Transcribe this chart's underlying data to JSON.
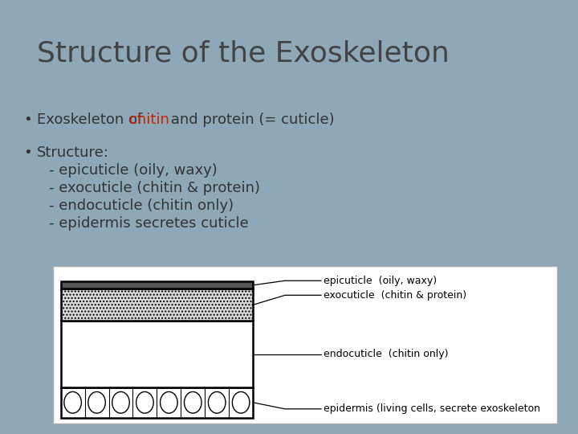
{
  "title": "Structure of the Exoskeleton",
  "title_fontsize": 26,
  "title_color": "#444444",
  "slide_bg": "#8fa8b8",
  "title_bg": "#e8eaeb",
  "content_bg": "#d0d8de",
  "bullet1_normal": "Exoskeleton of ",
  "bullet1_red": "chitin",
  "bullet1_rest": " and protein (= cuticle)",
  "bullet2_title": "Structure:",
  "bullet2_lines": [
    "- epicuticle (oily, waxy)",
    "- exocuticle (chitin & protein)",
    "- endocuticle (chitin only)",
    "- epidermis secretes cuticle"
  ],
  "diagram_labels": [
    "epicuticle  (oily, waxy)",
    "exocuticle  (chitin & protein)",
    "endocuticle  (chitin only)",
    "epidermis (living cells, secrete exoskeleton"
  ],
  "body_fontsize": 13,
  "diagram_fontsize": 9
}
